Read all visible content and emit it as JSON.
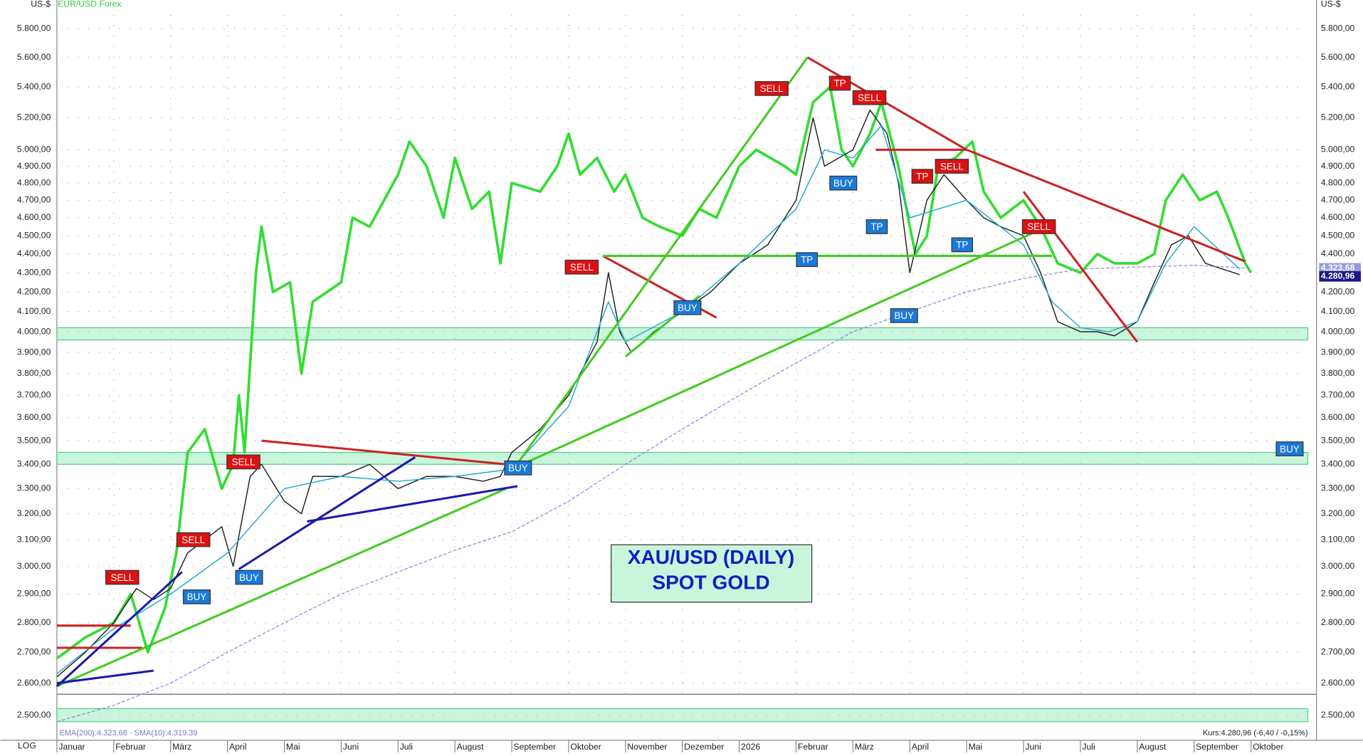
{
  "chart_data": {
    "type": "line",
    "log_scale": true,
    "grid": true,
    "title": "XAU/USD (DAILY)",
    "subtitle": "SPOT GOLD",
    "y_unit": "US-$",
    "scale_label": "LOG",
    "legend_text": "EMA(200):4.323,68 - SMA(10):4.319,39",
    "footer_text": "Kurs:4.280,96 (-6,40 / -0,15%)",
    "xlim": [
      0,
      22
    ],
    "xticks": [
      {
        "value": 0,
        "label": "Januar"
      },
      {
        "value": 1,
        "label": "Februar"
      },
      {
        "value": 2,
        "label": "März"
      },
      {
        "value": 3,
        "label": "April"
      },
      {
        "value": 4,
        "label": "Mai"
      },
      {
        "value": 5,
        "label": "Juni"
      },
      {
        "value": 6,
        "label": "Juli"
      },
      {
        "value": 7,
        "label": "August"
      },
      {
        "value": 8,
        "label": "September"
      },
      {
        "value": 9,
        "label": "Oktober"
      },
      {
        "value": 10,
        "label": "November"
      },
      {
        "value": 11,
        "label": "Dezember"
      },
      {
        "value": 12,
        "label": "2026"
      },
      {
        "value": 13,
        "label": "Februar"
      },
      {
        "value": 14,
        "label": "März"
      },
      {
        "value": 15,
        "label": "April"
      },
      {
        "value": 16,
        "label": "Mai"
      },
      {
        "value": 17,
        "label": "Juni"
      },
      {
        "value": 18,
        "label": "Juli"
      },
      {
        "value": 19,
        "label": "August"
      },
      {
        "value": 20,
        "label": "September"
      },
      {
        "value": 21,
        "label": "Oktober"
      }
    ],
    "ylim": [
      2450,
      5900
    ],
    "yticks": [
      {
        "value": 2500,
        "label": "2.500,00"
      },
      {
        "value": 2600,
        "label": "2.600,00"
      },
      {
        "value": 2700,
        "label": "2.700,00"
      },
      {
        "value": 2800,
        "label": "2.800,00"
      },
      {
        "value": 2900,
        "label": "2.900,00"
      },
      {
        "value": 3000,
        "label": "3.000,00"
      },
      {
        "value": 3100,
        "label": "3.100,00"
      },
      {
        "value": 3200,
        "label": "3.200,00"
      },
      {
        "value": 3300,
        "label": "3.300,00"
      },
      {
        "value": 3400,
        "label": "3.400,00"
      },
      {
        "value": 3500,
        "label": "3.500,00"
      },
      {
        "value": 3600,
        "label": "3.600,00"
      },
      {
        "value": 3700,
        "label": "3.700,00"
      },
      {
        "value": 3800,
        "label": "3.800,00"
      },
      {
        "value": 3900,
        "label": "3.900,00"
      },
      {
        "value": 4000,
        "label": "4.000,00"
      },
      {
        "value": 4100,
        "label": "4.100,00"
      },
      {
        "value": 4200,
        "label": "4.200,00"
      },
      {
        "value": 4300,
        "label": "4.300,00"
      },
      {
        "value": 4400,
        "label": "4.400,00"
      },
      {
        "value": 4500,
        "label": "4.500,00"
      },
      {
        "value": 4600,
        "label": "4.600,00"
      },
      {
        "value": 4700,
        "label": "4.700,00"
      },
      {
        "value": 4800,
        "label": "4.800,00"
      },
      {
        "value": 4900,
        "label": "4.900,00"
      },
      {
        "value": 5000,
        "label": "5.000,00"
      },
      {
        "value": 5200,
        "label": "5.200,00"
      },
      {
        "value": 5400,
        "label": "5.400,00"
      },
      {
        "value": 5600,
        "label": "5.600,00"
      },
      {
        "value": 5800,
        "label": "5.800,00"
      }
    ],
    "series": [
      {
        "name": "EUR/USD Forex",
        "color": "#33dd33",
        "width": 3,
        "x": [
          0,
          0.5,
          1,
          1.3,
          1.6,
          1.9,
          2.1,
          2.3,
          2.6,
          2.9,
          3.1,
          3.2,
          3.3,
          3.5,
          3.6,
          3.8,
          4.1,
          4.3,
          4.5,
          5,
          5.2,
          5.5,
          6,
          6.2,
          6.5,
          6.8,
          7,
          7.3,
          7.6,
          7.8,
          8,
          8.5,
          8.8,
          9,
          9.2,
          9.5,
          9.8,
          10,
          10.3,
          10.6,
          11,
          11.3,
          11.6,
          12,
          12.3,
          12.8,
          13,
          13.3,
          13.6,
          13.8,
          14,
          14.3,
          14.5,
          14.8,
          15,
          15.1,
          15.3,
          15.5,
          15.8,
          16.1,
          16.3,
          16.6,
          17,
          17.3,
          17.6,
          18,
          18.3,
          18.6,
          19,
          19.3,
          19.5,
          19.8,
          20.1,
          20.4,
          20.6,
          20.9,
          21
        ],
        "values": [
          2680,
          2750,
          2800,
          2900,
          2700,
          2850,
          3050,
          3450,
          3550,
          3300,
          3400,
          3700,
          3450,
          4300,
          4550,
          4200,
          4250,
          3800,
          4150,
          4250,
          4600,
          4550,
          4850,
          5050,
          4900,
          4600,
          4950,
          4650,
          4750,
          4350,
          4800,
          4750,
          4900,
          5100,
          4850,
          4950,
          4750,
          4850,
          4600,
          4550,
          4500,
          4650,
          4600,
          4900,
          5000,
          4900,
          4850,
          5300,
          5400,
          5000,
          4900,
          5100,
          5300,
          4900,
          4550,
          4400,
          4500,
          4900,
          4950,
          5050,
          4750,
          4600,
          4700,
          4550,
          4350,
          4300,
          4400,
          4350,
          4350,
          4400,
          4700,
          4850,
          4700,
          4750,
          4600,
          4350,
          4300
        ]
      },
      {
        "color": "#222222",
        "width": 1.2,
        "x": [
          0,
          0.5,
          1,
          1.4,
          1.7,
          2,
          2.3,
          2.9,
          3.1,
          3.4,
          3.6,
          4,
          4.3,
          4.5,
          5,
          5.5,
          6,
          6.5,
          7,
          7.5,
          7.8,
          8,
          8.5,
          9,
          9.5,
          9.7,
          9.9,
          10.1,
          10.5,
          11,
          11.5,
          12,
          12.5,
          13,
          13.3,
          13.5,
          14,
          14.3,
          14.6,
          14.8,
          15,
          15.3,
          15.6,
          16,
          16.3,
          16.6,
          17,
          17.3,
          17.6,
          18,
          18.3,
          18.6,
          19,
          19.3,
          19.6,
          19.9,
          20.2,
          20.5,
          20.8
        ],
        "values": [
          2620,
          2700,
          2800,
          2920,
          2880,
          2920,
          3050,
          3150,
          3000,
          3350,
          3400,
          3250,
          3200,
          3350,
          3350,
          3400,
          3300,
          3350,
          3350,
          3330,
          3350,
          3450,
          3550,
          3700,
          3950,
          4300,
          4000,
          3900,
          4000,
          4100,
          4200,
          4350,
          4450,
          4700,
          5200,
          4900,
          5000,
          5250,
          5100,
          4800,
          4300,
          4700,
          4850,
          4700,
          4600,
          4550,
          4500,
          4300,
          4050,
          4000,
          4000,
          3980,
          4050,
          4250,
          4450,
          4500,
          4350,
          4320,
          4290
        ]
      },
      {
        "color": "#22aacc",
        "width": 1.2,
        "x": [
          0,
          1,
          2,
          3,
          4,
          5,
          6,
          7,
          8,
          9,
          9.7,
          10,
          11,
          12,
          13,
          13.5,
          14,
          14.5,
          15,
          16,
          17,
          17.5,
          18,
          18.5,
          19,
          19.5,
          20,
          20.8
        ],
        "values": [
          2630,
          2780,
          2900,
          3050,
          3300,
          3350,
          3330,
          3350,
          3380,
          3650,
          4150,
          3950,
          4100,
          4350,
          4650,
          5000,
          4950,
          5150,
          4600,
          4700,
          4450,
          4150,
          4020,
          4000,
          4050,
          4350,
          4550,
          4319.39
        ]
      },
      {
        "color": "#8888dd",
        "width": 1,
        "dash": "4 2",
        "x": [
          0,
          1,
          2,
          3,
          4,
          5,
          6,
          7,
          8,
          9,
          10,
          11,
          12,
          13,
          14,
          15,
          16,
          17,
          18,
          19,
          20,
          21
        ],
        "values": [
          2480,
          2530,
          2600,
          2700,
          2800,
          2900,
          2980,
          3060,
          3130,
          3250,
          3400,
          3550,
          3700,
          3850,
          4000,
          4100,
          4200,
          4270,
          4320,
          4330,
          4340,
          4323.68
        ]
      }
    ],
    "zones": [
      {
        "from": 2480,
        "to": 2520
      },
      {
        "from": 3400,
        "to": 3450
      },
      {
        "from": 3960,
        "to": 4020
      }
    ],
    "trendlines": [
      {
        "color": "#cc2222",
        "x": [
          0,
          1.3
        ],
        "values": [
          2790,
          2790
        ]
      },
      {
        "color": "#cc2222",
        "x": [
          0,
          1.5
        ],
        "values": [
          2715,
          2715
        ]
      },
      {
        "color": "#cc2222",
        "x": [
          3.6,
          7.9
        ],
        "values": [
          3500,
          3400
        ]
      },
      {
        "color": "#cc2222",
        "x": [
          9.6,
          11.6
        ],
        "values": [
          4390,
          4070
        ]
      },
      {
        "color": "#cc2222",
        "x": [
          13.2,
          16
        ],
        "values": [
          5600,
          5000
        ]
      },
      {
        "color": "#cc2222",
        "x": [
          14.4,
          16
        ],
        "values": [
          5000,
          5000
        ]
      },
      {
        "color": "#cc2222",
        "x": [
          16,
          20.9
        ],
        "values": [
          5000,
          4360
        ]
      },
      {
        "color": "#cc2222",
        "x": [
          17,
          19
        ],
        "values": [
          4750,
          3950
        ]
      },
      {
        "color": "#44cc22",
        "x": [
          0,
          7.9
        ],
        "values": [
          2590,
          3300
        ]
      },
      {
        "color": "#44cc22",
        "x": [
          8,
          17.2
        ],
        "values": [
          3380,
          4520
        ]
      },
      {
        "color": "#44cc22",
        "x": [
          8,
          13.2
        ],
        "values": [
          3370,
          5600
        ]
      },
      {
        "color": "#44cc22",
        "x": [
          9.6,
          17.5
        ],
        "values": [
          4390,
          4390
        ]
      },
      {
        "color": "#44cc22",
        "x": [
          10,
          11.3
        ],
        "values": [
          3880,
          4180
        ]
      },
      {
        "color": "#1a1aaa",
        "x": [
          0,
          2.2
        ],
        "values": [
          2590,
          2980
        ]
      },
      {
        "color": "#1a1aaa",
        "x": [
          3.2,
          6.3
        ],
        "values": [
          2990,
          3430
        ]
      },
      {
        "color": "#1a1aaa",
        "x": [
          4.4,
          8.1
        ],
        "values": [
          3170,
          3310
        ]
      },
      {
        "color": "#1a1aaa",
        "x": [
          0,
          1.7
        ],
        "values": [
          2600,
          2640
        ]
      }
    ],
    "annotations": [
      {
        "label": "SELL",
        "x": 1.15,
        "y": 2960
      },
      {
        "label": "SELL",
        "x": 2.4,
        "y": 3100
      },
      {
        "label": "SELL",
        "x": 3.28,
        "y": 3410
      },
      {
        "label": "BUY",
        "x": 2.46,
        "y": 2890
      },
      {
        "label": "BUY",
        "x": 3.38,
        "y": 2960
      },
      {
        "label": "BUY",
        "x": 8.11,
        "y": 3385
      },
      {
        "label": "SELL",
        "x": 9.23,
        "y": 4330
      },
      {
        "label": "BUY",
        "x": 11.09,
        "y": 4120
      },
      {
        "label": "SELL",
        "x": 12.57,
        "y": 5390
      },
      {
        "label": "TP",
        "x": 13.77,
        "y": 5425
      },
      {
        "label": "SELL",
        "x": 14.29,
        "y": 5330
      },
      {
        "label": "BUY",
        "x": 13.83,
        "y": 4800
      },
      {
        "label": "TP",
        "x": 13.19,
        "y": 4370
      },
      {
        "label": "TP",
        "x": 14.42,
        "y": 4550
      },
      {
        "label": "BUY",
        "x": 14.9,
        "y": 4080
      },
      {
        "label": "TP",
        "x": 15.22,
        "y": 4840
      },
      {
        "label": "SELL",
        "x": 15.74,
        "y": 4900
      },
      {
        "label": "TP",
        "x": 15.92,
        "y": 4450
      },
      {
        "label": "SELL",
        "x": 17.27,
        "y": 4550
      },
      {
        "label": "BUY",
        "x": 21.68,
        "y": 3465
      }
    ],
    "price_tags": [
      {
        "value": 4323.68,
        "label": "4.323,68",
        "color": "#9999dd"
      },
      {
        "value": 4280.96,
        "label": "4.280,96",
        "color": "#1a1a88"
      }
    ]
  }
}
